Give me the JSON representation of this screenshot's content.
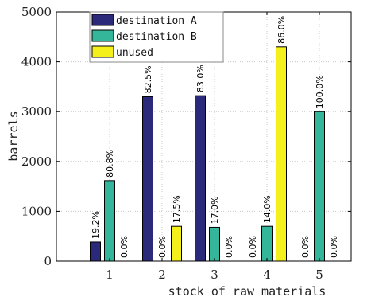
{
  "chart_data": {
    "type": "bar",
    "title": "",
    "xlabel": "stock of raw materials",
    "ylabel": "barrels",
    "categories": [
      "1",
      "2",
      "3",
      "4",
      "5"
    ],
    "ylim": [
      0,
      5000
    ],
    "yticks": [
      0,
      1000,
      2000,
      3000,
      4000,
      5000
    ],
    "grid": true,
    "legend_position": "top-left",
    "series": [
      {
        "name": "destination A",
        "color": "#2b2a7a",
        "values": [
          384,
          3300,
          3320,
          0,
          0
        ],
        "labels": [
          "19.2%",
          "82.5%",
          "83.0%",
          "0.0%",
          "0.0%"
        ]
      },
      {
        "name": "destination B",
        "color": "#33b699",
        "values": [
          1616,
          0,
          680,
          700,
          3000
        ],
        "labels": [
          "80.8%",
          "0.0%",
          "17.0%",
          "14.0%",
          "100.0%"
        ]
      },
      {
        "name": "unused",
        "color": "#f4f01c",
        "values": [
          0,
          700,
          0,
          4300,
          0
        ],
        "labels": [
          "0.0%",
          "17.5%",
          "0.0%",
          "86.0%",
          "0.0%"
        ]
      }
    ]
  }
}
